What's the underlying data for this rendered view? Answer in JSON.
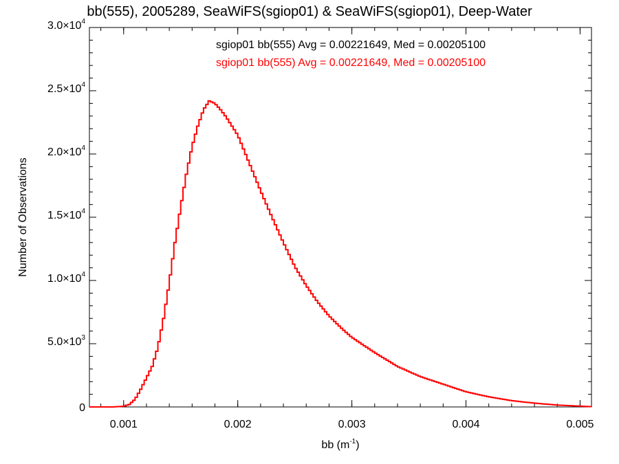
{
  "chart_data": {
    "type": "line",
    "title": "bb(555), 2005289, SeaWiFS(sgiop01) & SeaWiFS(sgiop01), Deep-Water",
    "xlabel": {
      "base": "bb (m",
      "sup": "-1",
      "end": ")"
    },
    "ylabel": "Number of Observations",
    "xlim": [
      0.0007,
      0.0051
    ],
    "ylim": [
      0,
      30000
    ],
    "x_ticks": [
      {
        "value": 0.001,
        "label": "0.001"
      },
      {
        "value": 0.002,
        "label": "0.002"
      },
      {
        "value": 0.003,
        "label": "0.003"
      },
      {
        "value": 0.004,
        "label": "0.004"
      },
      {
        "value": 0.005,
        "label": "0.005"
      }
    ],
    "y_ticks": [
      {
        "value": 0,
        "mant": "0",
        "exp": ""
      },
      {
        "value": 5000,
        "mant": "5.0×10",
        "exp": "3"
      },
      {
        "value": 10000,
        "mant": "1.0×10",
        "exp": "4"
      },
      {
        "value": 15000,
        "mant": "1.5×10",
        "exp": "4"
      },
      {
        "value": 20000,
        "mant": "2.0×10",
        "exp": "4"
      },
      {
        "value": 25000,
        "mant": "2.5×10",
        "exp": "4"
      },
      {
        "value": 30000,
        "mant": "3.0×10",
        "exp": "4"
      }
    ],
    "x_minor_step": 0.0002,
    "y_minor_step": 1000,
    "step_width": 2e-05,
    "annotations": [
      {
        "text": "sgiop01 bb(555) Avg = 0.00221649, Med = 0.00205100",
        "color": "#000000"
      },
      {
        "text": "sgiop01 bb(555) Avg = 0.00221649, Med = 0.00205100",
        "color": "#ff0000"
      }
    ],
    "series": [
      {
        "color": "#ff0000",
        "anchors_x": [
          0.0007,
          0.0009,
          0.001,
          0.00105,
          0.0011,
          0.00115,
          0.0012,
          0.00125,
          0.0013,
          0.00135,
          0.0014,
          0.00145,
          0.0015,
          0.00155,
          0.0016,
          0.00165,
          0.0017,
          0.00175,
          0.0018,
          0.00185,
          0.0019,
          0.002,
          0.0021,
          0.0022,
          0.0023,
          0.0024,
          0.0025,
          0.0026,
          0.0027,
          0.0028,
          0.0029,
          0.003,
          0.0032,
          0.0034,
          0.0036,
          0.0038,
          0.004,
          0.0042,
          0.0044,
          0.0046,
          0.0048,
          0.0051
        ],
        "anchors_y": [
          0,
          0,
          50,
          200,
          600,
          1400,
          2300,
          3200,
          4700,
          7000,
          9800,
          13000,
          15800,
          18400,
          20600,
          22200,
          23500,
          24200,
          24000,
          23500,
          22900,
          21500,
          19300,
          17100,
          15000,
          13000,
          11100,
          9600,
          8300,
          7200,
          6300,
          5500,
          4300,
          3200,
          2400,
          1800,
          1200,
          800,
          500,
          300,
          150,
          20
        ]
      }
    ]
  }
}
